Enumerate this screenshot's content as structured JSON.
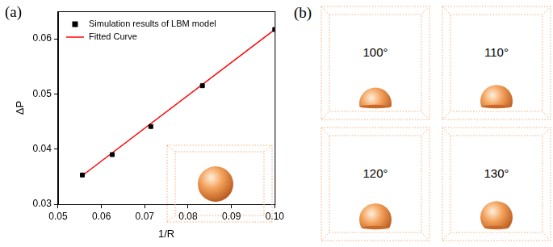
{
  "chart_data": {
    "type": "scatter",
    "x_label": "1/R",
    "y_label": "ΔP",
    "xlim": [
      0.05,
      0.1
    ],
    "xticks": [
      0.05,
      0.06,
      0.07,
      0.08,
      0.09,
      {
        "value": 0.1,
        "label": "0.10"
      }
    ],
    "ylim": [
      0.03,
      0.065
    ],
    "yticks": [
      0.03,
      0.04,
      0.05,
      0.06
    ],
    "grid": false,
    "legend": "upper left",
    "series": [
      {
        "name": "Simulation results of LBM model",
        "type": "scatter",
        "marker": "square",
        "color": "#000000",
        "x": [
          0.0556,
          0.0625,
          0.0714,
          0.0833,
          0.1
        ],
        "values": [
          0.0353,
          0.039,
          0.0441,
          0.0515,
          0.0617
        ]
      },
      {
        "name": "Fitted Curve",
        "type": "line",
        "line_style": "solid",
        "color": "#ff0000",
        "x": [
          0.0556,
          0.1
        ],
        "values": [
          0.0352,
          0.0617
        ]
      }
    ]
  },
  "figure": {
    "panel_labels": [
      "(a)",
      "(b)"
    ],
    "droplets": [
      {
        "contact_angle": 100,
        "label": "100°"
      },
      {
        "contact_angle": 110,
        "label": "110°"
      },
      {
        "contact_angle": 120,
        "label": "120°"
      },
      {
        "contact_angle": 130,
        "label": "130°"
      }
    ]
  }
}
